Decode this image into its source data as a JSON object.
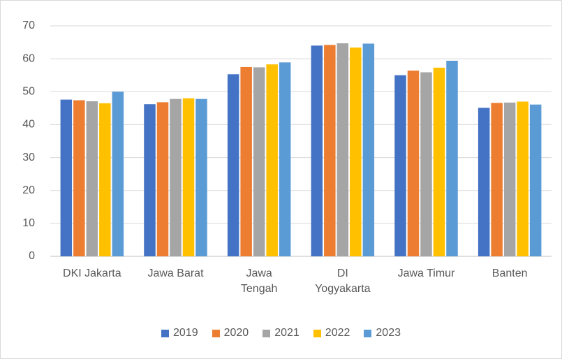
{
  "chart_data": {
    "type": "bar",
    "categories": [
      "DKI Jakarta",
      "Jawa Barat",
      "Jawa Tengah",
      "DI Yogyakarta",
      "Jawa Timur",
      "Banten"
    ],
    "series": [
      {
        "name": "2019",
        "color": "#4472c4",
        "values": [
          47.6,
          46.2,
          55.3,
          64.0,
          55.0,
          45.1
        ]
      },
      {
        "name": "2020",
        "color": "#ed7d31",
        "values": [
          47.4,
          46.8,
          57.5,
          64.2,
          56.4,
          46.6
        ]
      },
      {
        "name": "2021",
        "color": "#a5a5a5",
        "values": [
          47.1,
          47.8,
          57.4,
          64.7,
          55.9,
          46.7
        ]
      },
      {
        "name": "2022",
        "color": "#ffc000",
        "values": [
          46.5,
          48.0,
          58.3,
          63.4,
          57.3,
          47.0
        ]
      },
      {
        "name": "2023",
        "color": "#5b9bd5",
        "values": [
          50.0,
          47.8,
          58.9,
          64.6,
          59.4,
          46.1
        ]
      }
    ],
    "ylim": [
      0,
      70
    ],
    "yticks": [
      0,
      10,
      20,
      30,
      40,
      50,
      60,
      70
    ],
    "grid": true,
    "legend": "bottom"
  }
}
